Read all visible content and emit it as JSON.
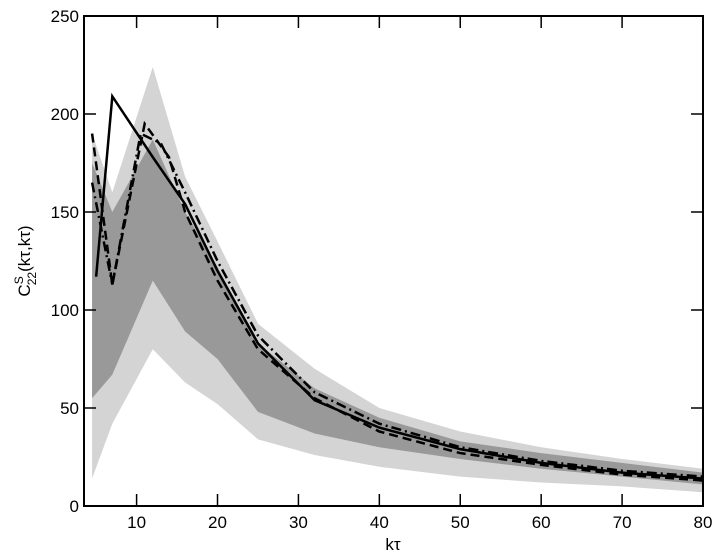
{
  "chart_data": {
    "type": "line",
    "xlabel": "kτ",
    "ylabel": {
      "base": "C",
      "sup": "S",
      "sub": "22",
      "args": "(kτ,kτ)"
    },
    "xlim": [
      3.5,
      80
    ],
    "ylim": [
      0,
      250
    ],
    "xticks": [
      10,
      20,
      30,
      40,
      50,
      60,
      70,
      80
    ],
    "yticks": [
      0,
      50,
      100,
      150,
      200,
      250
    ],
    "bands": [
      {
        "color": "#d4d4d4",
        "x": [
          4.5,
          7,
          12,
          16,
          20,
          25,
          32,
          40,
          50,
          60,
          70,
          80
        ],
        "upper": [
          190,
          160,
          224,
          168,
          135,
          93,
          70,
          50,
          38,
          30,
          24,
          19
        ],
        "lower": [
          14,
          42,
          80,
          63,
          52,
          34,
          26,
          20,
          15,
          12,
          10,
          7
        ]
      },
      {
        "color": "#999999",
        "x": [
          4.5,
          7,
          12,
          16,
          20,
          25,
          32,
          40,
          50,
          60,
          70,
          80
        ],
        "upper": [
          175,
          150,
          187,
          150,
          122,
          83,
          60,
          45,
          33,
          27,
          22,
          17
        ],
        "lower": [
          55,
          67,
          115,
          89,
          75,
          48,
          37,
          30,
          24,
          19,
          15,
          11
        ]
      }
    ],
    "series": [
      {
        "color": "#000000",
        "dash": "solid",
        "x": [
          5,
          7,
          12,
          16,
          20,
          25,
          32,
          40,
          50,
          60,
          70,
          80
        ],
        "values": [
          117,
          209,
          178,
          154,
          120,
          83,
          54,
          40,
          29,
          22,
          17,
          14
        ]
      },
      {
        "color": "#000000",
        "dash": "dashed",
        "x": [
          4.5,
          7,
          11,
          14,
          16,
          20,
          25,
          32,
          40,
          50,
          60,
          70,
          80
        ],
        "values": [
          190,
          113,
          195,
          178,
          150,
          115,
          80,
          55,
          38,
          27,
          21,
          16,
          13
        ]
      },
      {
        "color": "#000000",
        "dash": "dashdot",
        "x": [
          4.5,
          7,
          10.5,
          13,
          16,
          20,
          25,
          32,
          40,
          50,
          60,
          70,
          80
        ],
        "values": [
          165,
          113,
          190,
          185,
          160,
          125,
          87,
          58,
          42,
          30,
          23,
          18,
          15
        ]
      }
    ]
  }
}
